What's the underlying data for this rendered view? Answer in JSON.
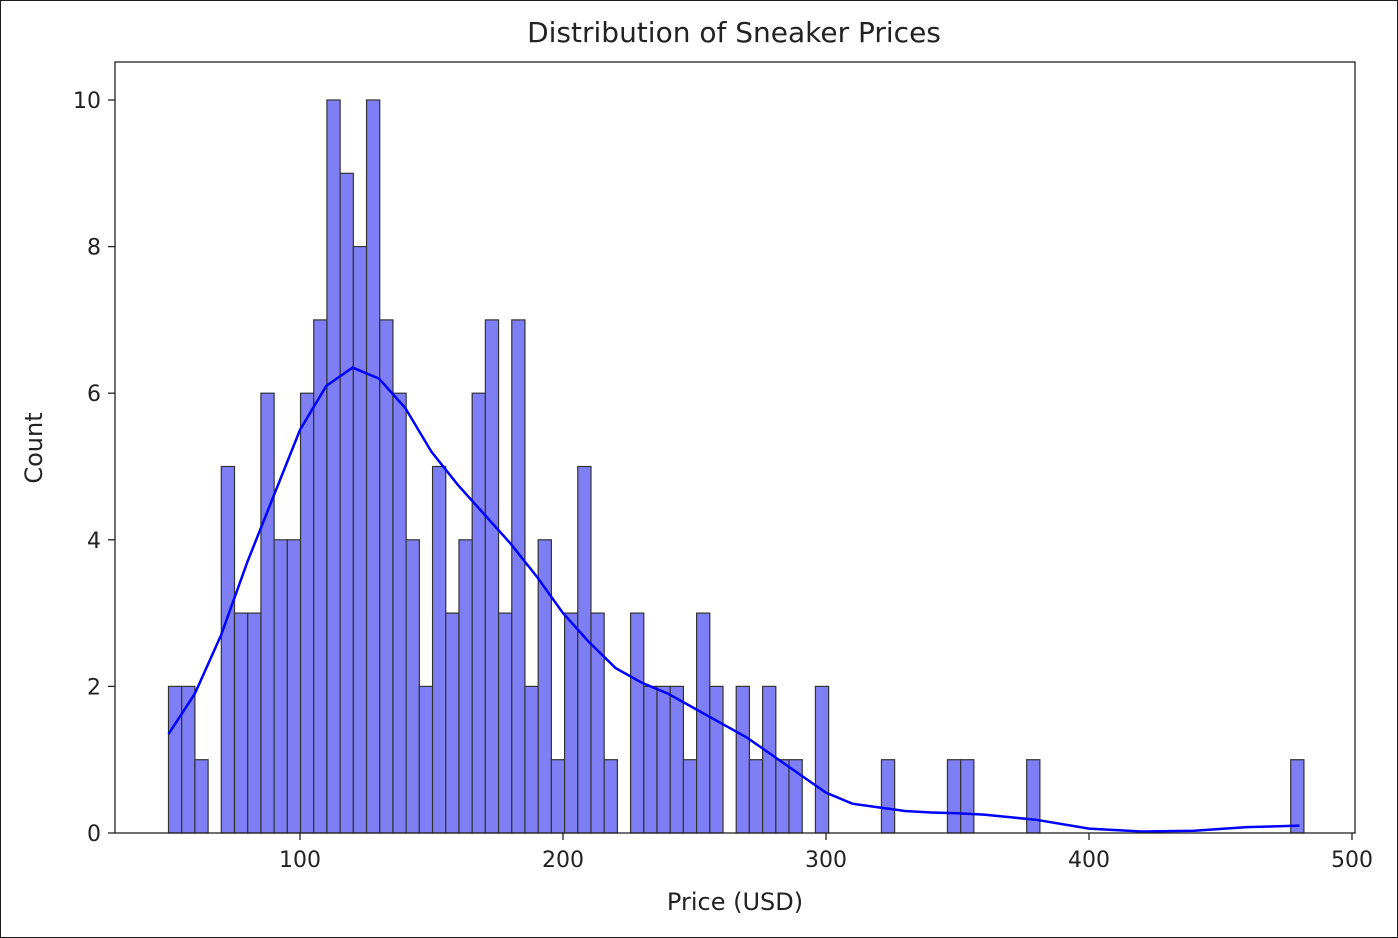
{
  "chart_data": {
    "type": "bar",
    "subtype": "histogram_with_kde",
    "title": "Distribution of Sneaker Prices",
    "xlabel": "Price (USD)",
    "ylabel": "Count",
    "xlim": [
      28,
      505
    ],
    "ylim": [
      0,
      10.5
    ],
    "xticks": [
      100,
      200,
      300,
      400,
      500
    ],
    "yticks": [
      0,
      2,
      4,
      6,
      8,
      10
    ],
    "bin_start": 50,
    "bin_width": 5.02,
    "bins": [
      2,
      2,
      1,
      0,
      5,
      3,
      3,
      6,
      4,
      4,
      6,
      7,
      10,
      9,
      8,
      10,
      7,
      6,
      4,
      2,
      5,
      3,
      4,
      6,
      7,
      3,
      7,
      2,
      4,
      1,
      3,
      5,
      3,
      1,
      0,
      3,
      2,
      2,
      2,
      1,
      3,
      2,
      0,
      2,
      1,
      2,
      1,
      1,
      0,
      2,
      0,
      0,
      0,
      0,
      1,
      0,
      0,
      0,
      0,
      1,
      1,
      0,
      0,
      0,
      0,
      1,
      0,
      0,
      0,
      0,
      0,
      0,
      0,
      0,
      0,
      0,
      0,
      0,
      0,
      0,
      0,
      0,
      0,
      0,
      0,
      1
    ],
    "kde": {
      "x": [
        50,
        60,
        70,
        80,
        90,
        100,
        110,
        120,
        130,
        140,
        150,
        160,
        170,
        180,
        190,
        200,
        210,
        220,
        230,
        240,
        250,
        260,
        270,
        280,
        290,
        300,
        310,
        320,
        330,
        340,
        350,
        360,
        380,
        400,
        420,
        440,
        460,
        480
      ],
      "y": [
        1.35,
        1.9,
        2.7,
        3.7,
        4.6,
        5.5,
        6.1,
        6.35,
        6.2,
        5.8,
        5.2,
        4.75,
        4.35,
        3.95,
        3.5,
        3.0,
        2.6,
        2.25,
        2.05,
        1.9,
        1.7,
        1.5,
        1.3,
        1.05,
        0.8,
        0.55,
        0.4,
        0.35,
        0.3,
        0.28,
        0.27,
        0.25,
        0.18,
        0.06,
        0.02,
        0.03,
        0.08,
        0.1
      ]
    },
    "bar_color": "#7f7ff5",
    "bar_edge": "#333333",
    "kde_color": "#0000ff",
    "grid": false,
    "legend": null
  }
}
